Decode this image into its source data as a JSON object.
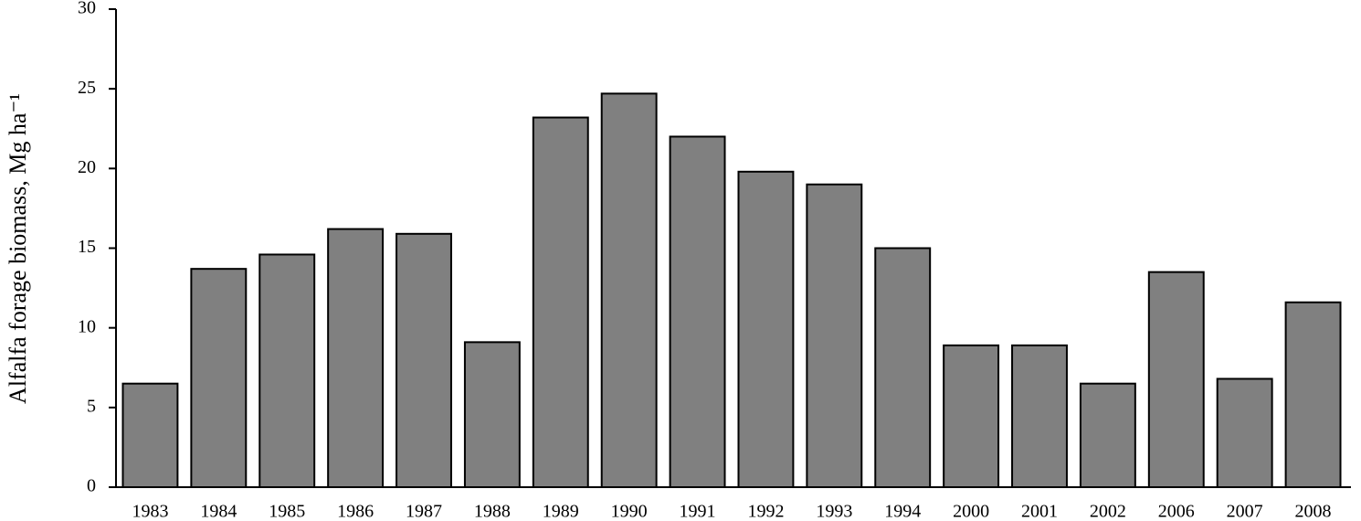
{
  "chart_data": {
    "type": "bar",
    "y_label": "Alfalfa forage biomass, Mg ha⁻¹",
    "categories": [
      "1983",
      "1984",
      "1985",
      "1986",
      "1987",
      "1988",
      "1989",
      "1990",
      "1991",
      "1992",
      "1993",
      "1994",
      "2000",
      "2001",
      "2002",
      "2006",
      "2007",
      "2008"
    ],
    "values": [
      6.5,
      13.7,
      14.6,
      16.2,
      15.9,
      9.1,
      23.2,
      24.7,
      22.0,
      19.8,
      19.0,
      15.0,
      8.9,
      8.9,
      6.5,
      13.5,
      6.8,
      11.6
    ],
    "color": "#808080",
    "ylim": [
      0,
      30
    ],
    "yticks": [
      0,
      5,
      10,
      15,
      20,
      25,
      30
    ],
    "grid": false
  }
}
